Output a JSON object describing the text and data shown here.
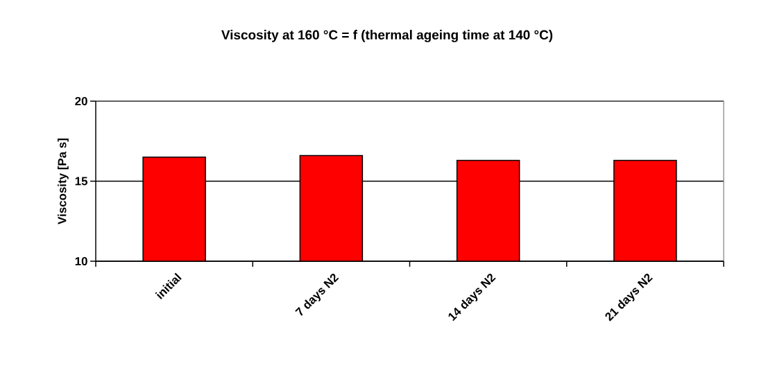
{
  "chart_data": {
    "type": "bar",
    "title": "Viscosity at 160 °C = f (thermal ageing time at 140 °C)",
    "ylabel": "Viscosity [Pa s]",
    "categories": [
      "initial",
      "7 days N2",
      "14 days N2",
      "21 days N2"
    ],
    "values": [
      16.5,
      16.6,
      16.3,
      16.3
    ],
    "color": "#ff0000",
    "ylim": [
      10,
      20
    ],
    "yticks": [
      10,
      15,
      20
    ],
    "grid": "y"
  }
}
